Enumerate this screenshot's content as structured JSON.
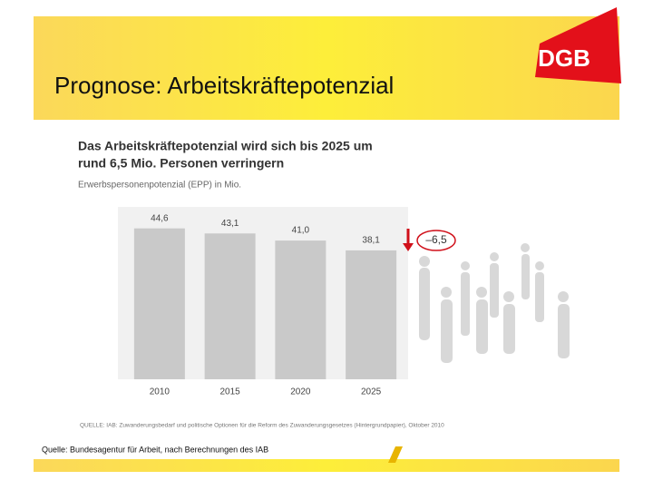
{
  "slide_title": "Prognose: Arbeitskräftepotenzial",
  "logo": "DGB",
  "footer_source": "Quelle: Bundesagentur für Arbeit, nach Berechnungen des IAB",
  "chart_data": {
    "type": "bar",
    "title_lines": [
      "Das Arbeitskräftepotenzial wird sich bis 2025 um",
      "rund 6,5 Mio. Personen verringern"
    ],
    "subtitle": "Erwerbspersonenpotenzial (EPP) in Mio.",
    "categories": [
      "2010",
      "2015",
      "2020",
      "2025"
    ],
    "values": [
      44.6,
      43.1,
      41.0,
      38.1
    ],
    "value_labels": [
      "44,6",
      "43,1",
      "41,0",
      "38,1"
    ],
    "color": "#c9c9c9",
    "ylim": [
      0,
      48
    ],
    "annotation": "–6,5",
    "source": "QUELLE: IAB: Zuwanderungsbedarf und politische Optionen für die Reform des Zuwanderungsgesetzes (Hintergrundpapier), Oktober 2010"
  }
}
